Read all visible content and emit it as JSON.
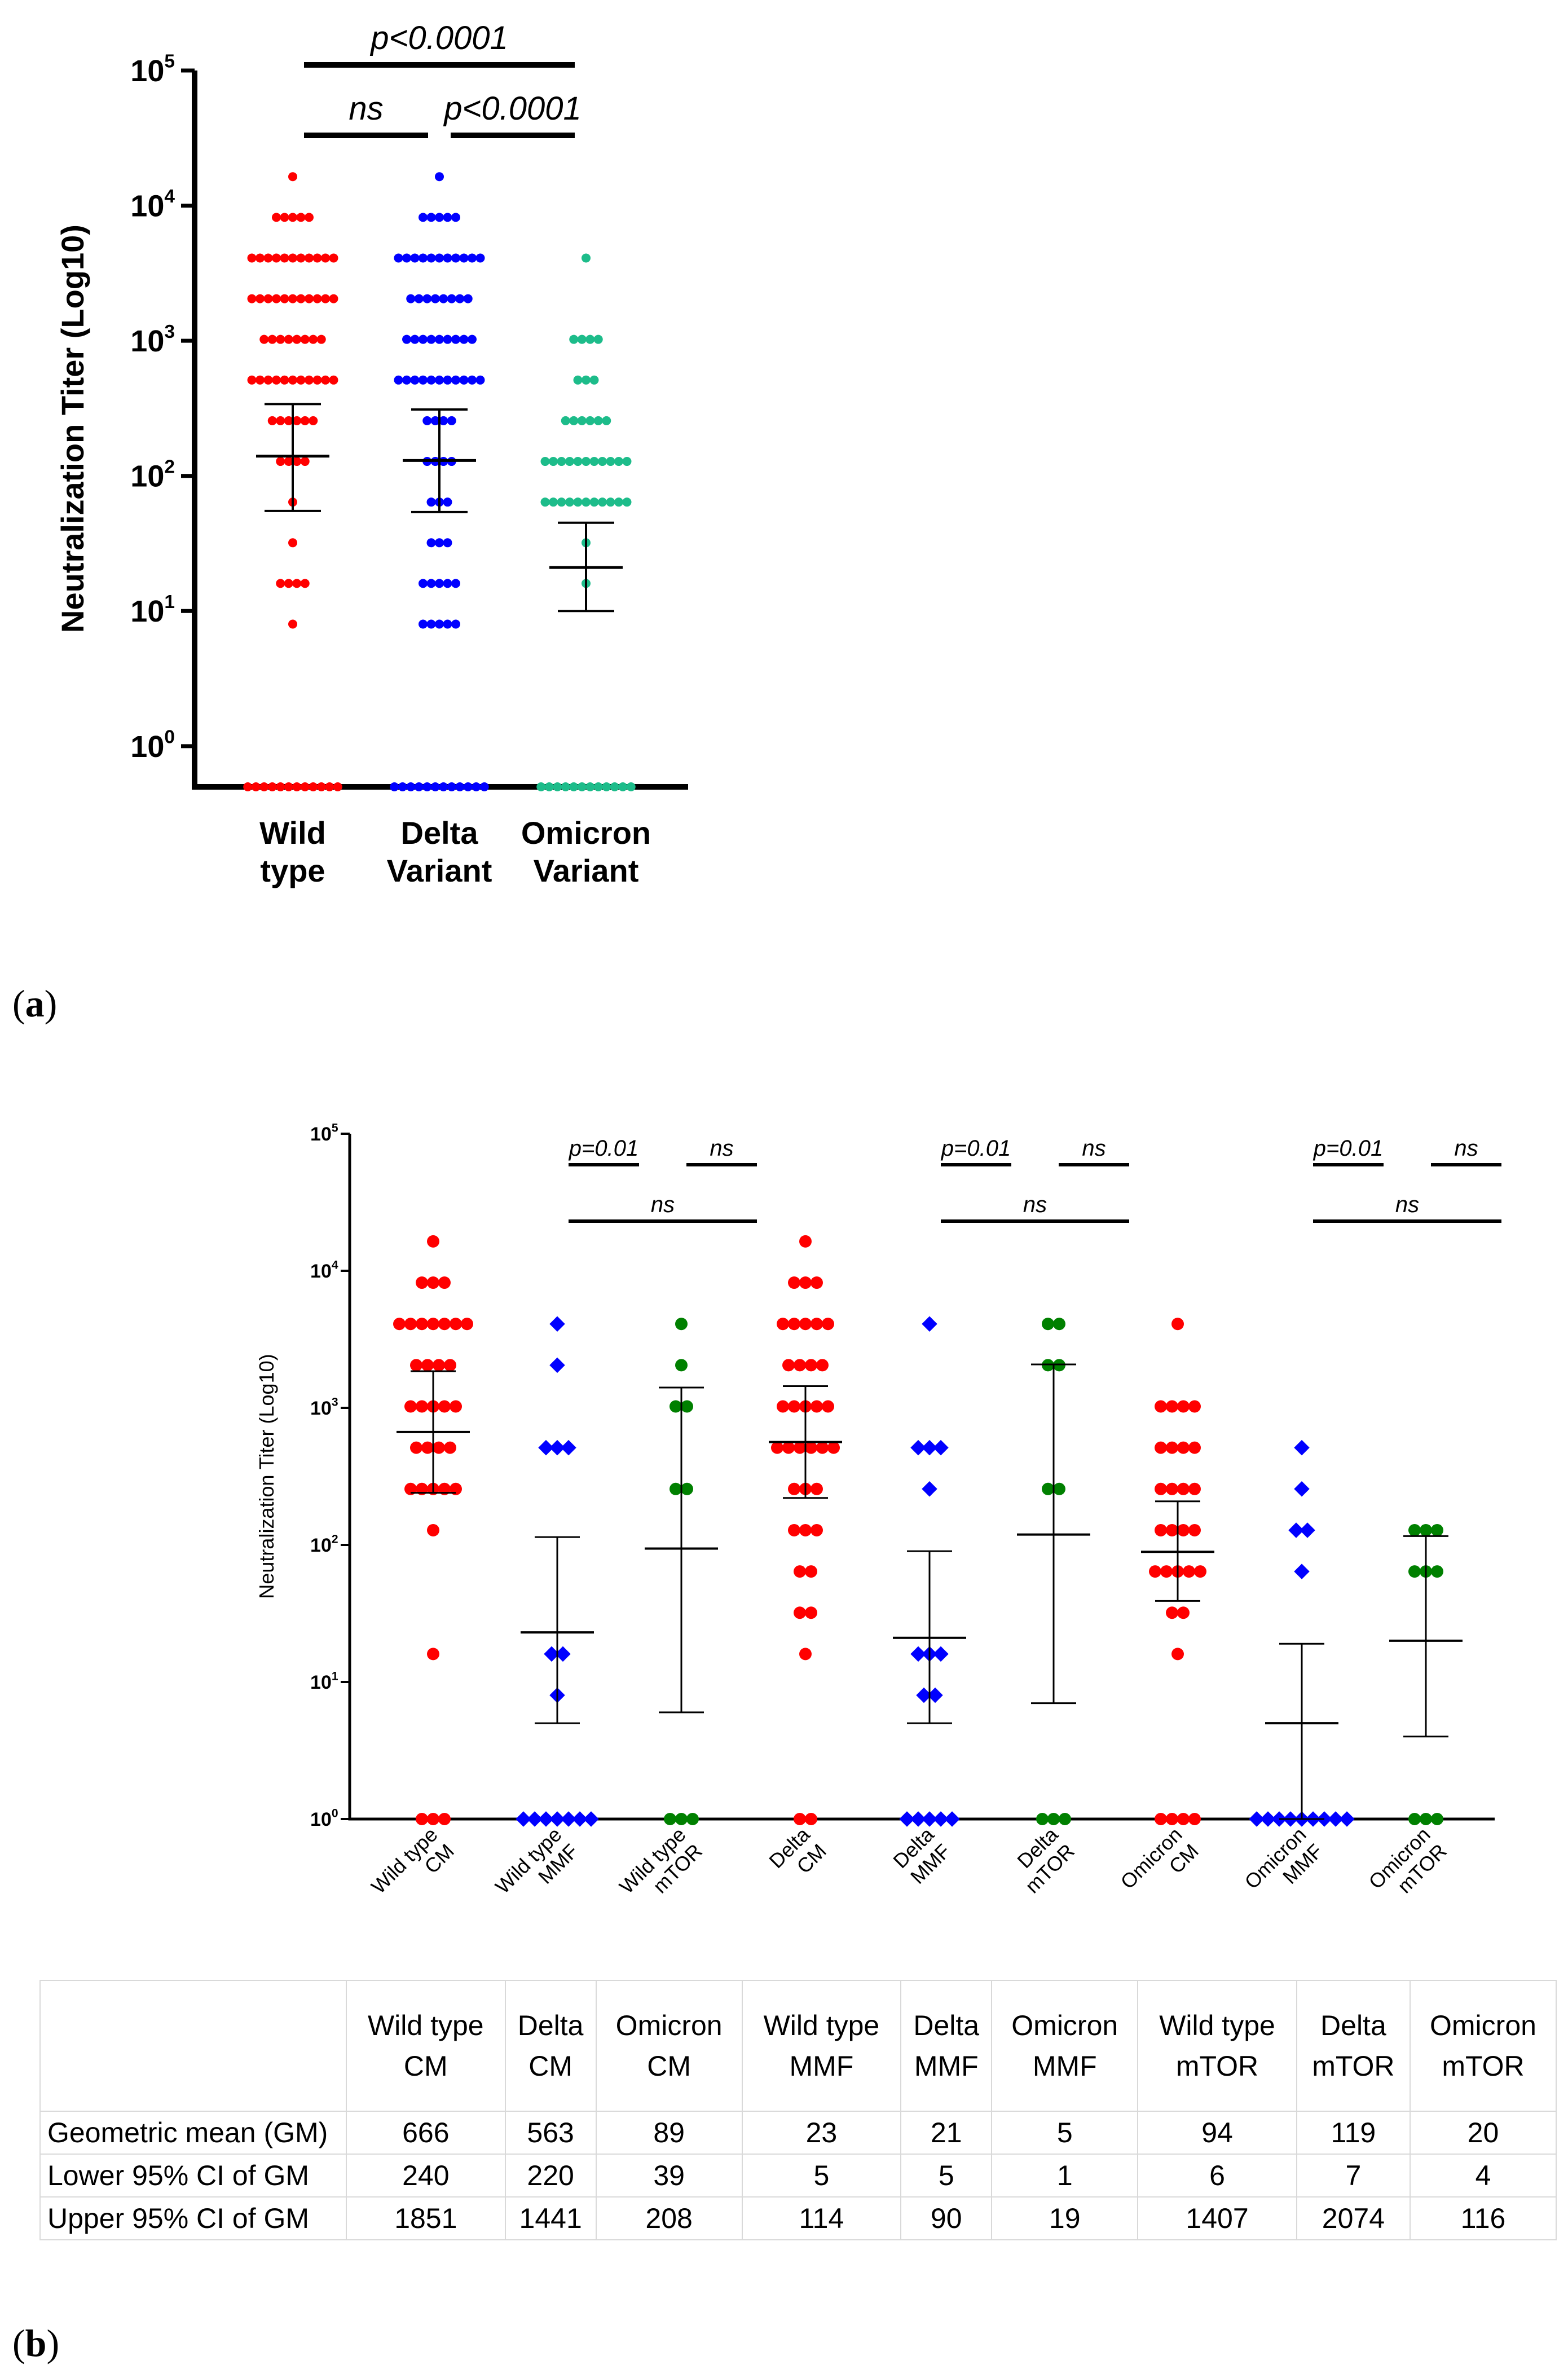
{
  "chart_data": [
    {
      "type": "scatter",
      "panel": "a",
      "ylabel": "Neutralization Titer (Log10)",
      "yscale": "log10",
      "ylim": [
        0.5,
        100000
      ],
      "yticks": [
        {
          "value": 1,
          "base": "10",
          "exp": "0"
        },
        {
          "value": 10,
          "base": "10",
          "exp": "1"
        },
        {
          "value": 100,
          "base": "10",
          "exp": "2"
        },
        {
          "value": 1000,
          "base": "10",
          "exp": "3"
        },
        {
          "value": 10000,
          "base": "10",
          "exp": "4"
        },
        {
          "value": 100000,
          "base": "10",
          "exp": "5"
        }
      ],
      "groups": [
        {
          "name": "Wild type",
          "label_lines": [
            "Wild",
            "type"
          ],
          "color": "#ff0000",
          "gm": 140,
          "lower": 55,
          "upper": 340,
          "points": [
            {
              "v": 16384,
              "n": 1
            },
            {
              "v": 8192,
              "n": 5
            },
            {
              "v": 4096,
              "n": 11
            },
            {
              "v": 2048,
              "n": 11
            },
            {
              "v": 1024,
              "n": 8
            },
            {
              "v": 512,
              "n": 11
            },
            {
              "v": 256,
              "n": 6
            },
            {
              "v": 128,
              "n": 4
            },
            {
              "v": 64,
              "n": 1
            },
            {
              "v": 32,
              "n": 1
            },
            {
              "v": 16,
              "n": 4
            },
            {
              "v": 8,
              "n": 1
            },
            {
              "v": 0.5,
              "n": 12
            }
          ]
        },
        {
          "name": "Delta Variant",
          "label_lines": [
            "Delta",
            "Variant"
          ],
          "color": "#0000ff",
          "gm": 130,
          "lower": 54,
          "upper": 310,
          "points": [
            {
              "v": 16384,
              "n": 1
            },
            {
              "v": 8192,
              "n": 5
            },
            {
              "v": 4096,
              "n": 11
            },
            {
              "v": 2048,
              "n": 8
            },
            {
              "v": 1024,
              "n": 9
            },
            {
              "v": 512,
              "n": 11
            },
            {
              "v": 256,
              "n": 4
            },
            {
              "v": 128,
              "n": 4
            },
            {
              "v": 64,
              "n": 3
            },
            {
              "v": 32,
              "n": 3
            },
            {
              "v": 16,
              "n": 5
            },
            {
              "v": 8,
              "n": 5
            },
            {
              "v": 0.5,
              "n": 12
            }
          ]
        },
        {
          "name": "Omicron Variant",
          "label_lines": [
            "Omicron",
            "Variant"
          ],
          "color": "#1dbc8a",
          "gm": 21,
          "lower": 10,
          "upper": 45,
          "points": [
            {
              "v": 4096,
              "n": 1
            },
            {
              "v": 1024,
              "n": 4
            },
            {
              "v": 512,
              "n": 3
            },
            {
              "v": 256,
              "n": 6
            },
            {
              "v": 128,
              "n": 11
            },
            {
              "v": 64,
              "n": 11
            },
            {
              "v": 32,
              "n": 1
            },
            {
              "v": 16,
              "n": 1
            },
            {
              "v": 0.5,
              "n": 12
            }
          ]
        }
      ],
      "comparisons": [
        {
          "from": 0,
          "to": 2,
          "label": "p<0.0001",
          "row": 0
        },
        {
          "from": 0,
          "to": 1,
          "label": "ns",
          "row": 1
        },
        {
          "from": 1,
          "to": 2,
          "label": "p<0.0001",
          "row": 1
        }
      ]
    },
    {
      "type": "scatter",
      "panel": "b",
      "ylabel": "Neutralization Titer (Log10)",
      "yscale": "log10",
      "ylim": [
        1,
        100000
      ],
      "yticks": [
        {
          "value": 1,
          "base": "10",
          "exp": "0"
        },
        {
          "value": 10,
          "base": "10",
          "exp": "1"
        },
        {
          "value": 100,
          "base": "10",
          "exp": "2"
        },
        {
          "value": 1000,
          "base": "10",
          "exp": "3"
        },
        {
          "value": 10000,
          "base": "10",
          "exp": "4"
        },
        {
          "value": 100000,
          "base": "10",
          "exp": "5"
        }
      ],
      "groups": [
        {
          "name": "Wild type CM",
          "label_lines": [
            "Wild type",
            "CM"
          ],
          "color": "#ff0000",
          "marker": "circle",
          "gm": 666,
          "lower": 240,
          "upper": 1851,
          "points": [
            {
              "v": 16384,
              "n": 1
            },
            {
              "v": 8192,
              "n": 3
            },
            {
              "v": 4096,
              "n": 7
            },
            {
              "v": 2048,
              "n": 4
            },
            {
              "v": 1024,
              "n": 5
            },
            {
              "v": 512,
              "n": 4
            },
            {
              "v": 256,
              "n": 5
            },
            {
              "v": 128,
              "n": 1
            },
            {
              "v": 16,
              "n": 1
            },
            {
              "v": 1,
              "n": 3
            }
          ]
        },
        {
          "name": "Wild type MMF",
          "label_lines": [
            "Wild type",
            "MMF"
          ],
          "color": "#0000ff",
          "marker": "diamond",
          "gm": 23,
          "lower": 5,
          "upper": 114,
          "points": [
            {
              "v": 4096,
              "n": 1
            },
            {
              "v": 2048,
              "n": 1
            },
            {
              "v": 512,
              "n": 3
            },
            {
              "v": 16,
              "n": 2
            },
            {
              "v": 8,
              "n": 1
            },
            {
              "v": 1,
              "n": 7
            }
          ]
        },
        {
          "name": "Wild type mTOR",
          "label_lines": [
            "Wild type",
            "mTOR"
          ],
          "color": "#008000",
          "marker": "circle",
          "gm": 94,
          "lower": 6,
          "upper": 1407,
          "points": [
            {
              "v": 4096,
              "n": 1
            },
            {
              "v": 2048,
              "n": 1
            },
            {
              "v": 1024,
              "n": 2
            },
            {
              "v": 256,
              "n": 2
            },
            {
              "v": 1,
              "n": 3
            }
          ]
        },
        {
          "name": "Delta CM",
          "label_lines": [
            "Delta",
            "CM"
          ],
          "color": "#ff0000",
          "marker": "circle",
          "gm": 563,
          "lower": 220,
          "upper": 1441,
          "points": [
            {
              "v": 16384,
              "n": 1
            },
            {
              "v": 8192,
              "n": 3
            },
            {
              "v": 4096,
              "n": 5
            },
            {
              "v": 2048,
              "n": 4
            },
            {
              "v": 1024,
              "n": 5
            },
            {
              "v": 512,
              "n": 6
            },
            {
              "v": 256,
              "n": 3
            },
            {
              "v": 128,
              "n": 3
            },
            {
              "v": 64,
              "n": 2
            },
            {
              "v": 32,
              "n": 2
            },
            {
              "v": 16,
              "n": 1
            },
            {
              "v": 1,
              "n": 2
            }
          ]
        },
        {
          "name": "Delta MMF",
          "label_lines": [
            "Delta",
            "MMF"
          ],
          "color": "#0000ff",
          "marker": "diamond",
          "gm": 21,
          "lower": 5,
          "upper": 90,
          "points": [
            {
              "v": 4096,
              "n": 1
            },
            {
              "v": 512,
              "n": 3
            },
            {
              "v": 256,
              "n": 1
            },
            {
              "v": 16,
              "n": 3
            },
            {
              "v": 8,
              "n": 2
            },
            {
              "v": 1,
              "n": 5
            }
          ]
        },
        {
          "name": "Delta mTOR",
          "label_lines": [
            "Delta",
            "mTOR"
          ],
          "color": "#008000",
          "marker": "circle",
          "gm": 119,
          "lower": 7,
          "upper": 2074,
          "points": [
            {
              "v": 4096,
              "n": 2
            },
            {
              "v": 2048,
              "n": 2
            },
            {
              "v": 256,
              "n": 2
            },
            {
              "v": 1,
              "n": 3
            }
          ]
        },
        {
          "name": "Omicron CM",
          "label_lines": [
            "Omicron",
            "CM"
          ],
          "color": "#ff0000",
          "marker": "circle",
          "gm": 89,
          "lower": 39,
          "upper": 208,
          "points": [
            {
              "v": 4096,
              "n": 1
            },
            {
              "v": 1024,
              "n": 4
            },
            {
              "v": 512,
              "n": 4
            },
            {
              "v": 256,
              "n": 4
            },
            {
              "v": 128,
              "n": 4
            },
            {
              "v": 64,
              "n": 5
            },
            {
              "v": 32,
              "n": 2
            },
            {
              "v": 16,
              "n": 1
            },
            {
              "v": 1,
              "n": 4
            }
          ]
        },
        {
          "name": "Omicron MMF",
          "label_lines": [
            "Omicron",
            "MMF"
          ],
          "color": "#0000ff",
          "marker": "diamond",
          "gm": 5,
          "lower": 1,
          "upper": 19,
          "points": [
            {
              "v": 512,
              "n": 1
            },
            {
              "v": 256,
              "n": 1
            },
            {
              "v": 128,
              "n": 2
            },
            {
              "v": 64,
              "n": 1
            },
            {
              "v": 1,
              "n": 9
            }
          ]
        },
        {
          "name": "Omicron mTOR",
          "label_lines": [
            "Omicron",
            "mTOR"
          ],
          "color": "#008000",
          "marker": "circle",
          "gm": 20,
          "lower": 4,
          "upper": 116,
          "points": [
            {
              "v": 128,
              "n": 3
            },
            {
              "v": 64,
              "n": 3
            },
            {
              "v": 1,
              "n": 3
            }
          ]
        }
      ],
      "comparisons": [
        {
          "from": 0,
          "to": 1,
          "label": "p=0.01",
          "row": 0,
          "at": [
            1,
            1.75
          ]
        },
        {
          "from": 0,
          "to": 1,
          "label": "ns",
          "row": 0,
          "at": [
            1.95,
            2.7
          ]
        },
        {
          "from": 0,
          "to": 1,
          "label": "ns",
          "row": 1,
          "at": [
            1,
            2.7
          ]
        },
        {
          "from": 0,
          "to": 1,
          "label": "p=0.01",
          "row": 0,
          "at": [
            4,
            4.75
          ]
        },
        {
          "from": 0,
          "to": 1,
          "label": "ns",
          "row": 0,
          "at": [
            4.95,
            5.7
          ]
        },
        {
          "from": 0,
          "to": 1,
          "label": "ns",
          "row": 1,
          "at": [
            4,
            5.7
          ]
        },
        {
          "from": 0,
          "to": 1,
          "label": "p=0.01",
          "row": 0,
          "at": [
            7,
            7.75
          ]
        },
        {
          "from": 0,
          "to": 1,
          "label": "ns",
          "row": 0,
          "at": [
            7.95,
            8.7
          ]
        },
        {
          "from": 0,
          "to": 1,
          "label": "ns",
          "row": 1,
          "at": [
            7,
            8.7
          ]
        }
      ]
    }
  ],
  "panel_labels": {
    "a": "a",
    "b": "b"
  },
  "table": {
    "columns": [
      [
        "Wild type",
        "CM"
      ],
      [
        "Delta",
        "CM"
      ],
      [
        "Omicron",
        "CM"
      ],
      [
        "Wild type",
        "MMF"
      ],
      [
        "Delta",
        "MMF"
      ],
      [
        "Omicron",
        "MMF"
      ],
      [
        "Wild type",
        "mTOR"
      ],
      [
        "Delta",
        "mTOR"
      ],
      [
        "Omicron",
        "mTOR"
      ]
    ],
    "rows": [
      {
        "label": "Geometric mean (GM)",
        "values": [
          "666",
          "563",
          "89",
          "23",
          "21",
          "5",
          "94",
          "119",
          "20"
        ]
      },
      {
        "label": "Lower 95% CI of GM",
        "values": [
          "240",
          "220",
          "39",
          "5",
          "5",
          "1",
          "6",
          "7",
          "4"
        ]
      },
      {
        "label": "Upper 95% CI of GM",
        "values": [
          "1851",
          "1441",
          "208",
          "114",
          "90",
          "19",
          "1407",
          "2074",
          "116"
        ]
      }
    ]
  }
}
